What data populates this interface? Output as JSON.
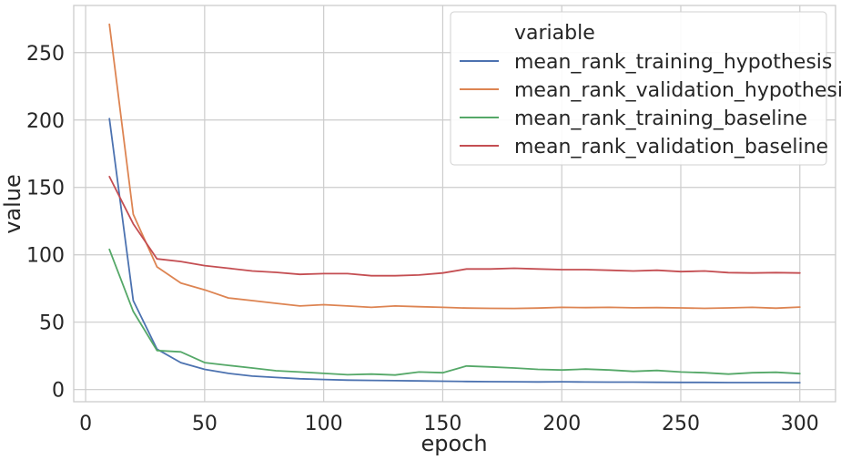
{
  "chart_data": {
    "type": "line",
    "xlabel": "epoch",
    "ylabel": "value",
    "xlim": [
      -5,
      315
    ],
    "ylim": [
      -9,
      285
    ],
    "xticks": [
      0,
      50,
      100,
      150,
      200,
      250,
      300
    ],
    "yticks": [
      0,
      50,
      100,
      150,
      200,
      250
    ],
    "grid": true,
    "legend": {
      "title": "variable",
      "position": "top-right"
    },
    "x": [
      10,
      20,
      30,
      40,
      50,
      60,
      70,
      80,
      90,
      100,
      110,
      120,
      130,
      140,
      150,
      160,
      170,
      180,
      190,
      200,
      210,
      220,
      230,
      240,
      250,
      260,
      270,
      280,
      290,
      300
    ],
    "series": [
      {
        "name": "mean_rank_training_hypothesis",
        "color": "#4c72b0",
        "values": [
          201,
          66,
          30,
          20,
          15,
          12,
          10,
          9,
          8,
          7.5,
          7,
          6.8,
          6.6,
          6.4,
          6.2,
          6,
          5.9,
          5.8,
          5.7,
          5.8,
          5.6,
          5.5,
          5.5,
          5.4,
          5.3,
          5.3,
          5.2,
          5.2,
          5.2,
          5.1
        ]
      },
      {
        "name": "mean_rank_validation_hypothesis",
        "color": "#dd8452",
        "values": [
          271,
          130,
          91,
          79,
          74,
          68,
          66,
          64,
          62,
          63,
          62,
          61,
          62,
          61.5,
          61,
          60.5,
          60.3,
          60.2,
          60.5,
          61,
          60.8,
          61,
          60.7,
          60.8,
          60.6,
          60.3,
          60.6,
          61,
          60.4,
          61.2
        ]
      },
      {
        "name": "mean_rank_training_baseline",
        "color": "#55a868",
        "values": [
          104,
          58,
          29,
          28,
          20,
          18,
          16,
          14,
          13,
          12,
          11,
          11.5,
          10.8,
          13,
          12.5,
          17.5,
          16.8,
          16,
          15,
          14.5,
          15.2,
          14.5,
          13.5,
          14.2,
          13,
          12.5,
          11.5,
          12.5,
          12.8,
          11.8
        ]
      },
      {
        "name": "mean_rank_validation_baseline",
        "color": "#c44e52",
        "values": [
          158,
          123,
          97,
          95,
          92,
          90,
          88,
          87,
          85.5,
          86,
          86,
          84.5,
          84.5,
          85,
          86.5,
          89.5,
          89.5,
          90,
          89.5,
          89,
          89,
          88.5,
          88,
          88.5,
          87.5,
          88,
          86.8,
          86.5,
          86.8,
          86.5
        ]
      }
    ]
  }
}
